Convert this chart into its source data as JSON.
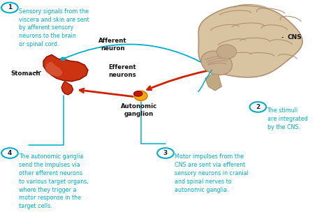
{
  "bg_color": "#ffffff",
  "cyan_color": "#00aec8",
  "red_color": "#cc2200",
  "dark_text": "#111111",
  "ann1_text": "Sensory signals from the\nviscera and skin are sent\nby afferent sensory\nneurons to the brain\nor spinal cord.",
  "ann2_text": "The stimuli\nare integrated\nby the CNS.",
  "ann3_text": "Motor impulses from the\nCNS are sent via efferent\nsensory neurons in cranial\nand spinal nerves to\nautonomic ganglia.",
  "ann4_text": "The autonomic ganglia\nsend the impulses via\nother efferent neurons\nto various target organs,\nwhere they trigger a\nmotor response in the\ntarget cells.",
  "label_stomach": "Stomach",
  "label_cns": "CNS",
  "label_afferent": "Afferent\nneuron",
  "label_efferent": "Efferent\nneurons",
  "label_ganglion": "Autonomic\nganglion",
  "brain_color": "#d8c4a0",
  "brain_edge": "#b09070",
  "stomach_color": "#cc3311",
  "stomach_highlight": "#dd6644",
  "ganglion_color": "#f5a800",
  "ganglion_edge": "#cc7700"
}
